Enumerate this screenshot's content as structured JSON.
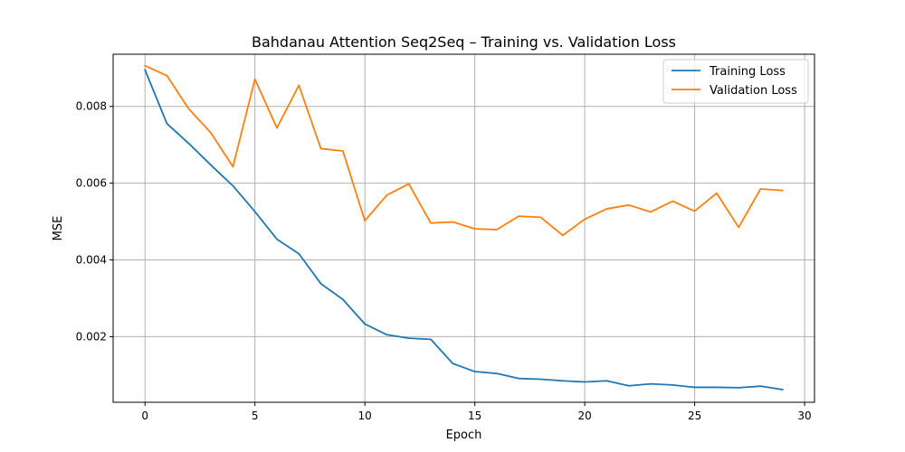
{
  "chart_data": {
    "type": "line",
    "title": "Bahdanau Attention Seq2Seq – Training vs. Validation Loss",
    "xlabel": "Epoch",
    "ylabel": "MSE",
    "xlim": [
      -1.45,
      30.45
    ],
    "ylim": [
      0.00029,
      0.00936
    ],
    "xticks": [
      0,
      5,
      10,
      15,
      20,
      25,
      30
    ],
    "xtick_labels": [
      "0",
      "5",
      "10",
      "15",
      "20",
      "25",
      "30"
    ],
    "yticks": [
      0.002,
      0.004,
      0.006,
      0.008
    ],
    "ytick_labels": [
      "0.002",
      "0.004",
      "0.006",
      "0.008"
    ],
    "grid": true,
    "legend_position": "top-right",
    "x": [
      0,
      1,
      2,
      3,
      4,
      5,
      6,
      7,
      8,
      9,
      10,
      11,
      12,
      13,
      14,
      15,
      16,
      17,
      18,
      19,
      20,
      21,
      22,
      23,
      24,
      25,
      26,
      27,
      28,
      29
    ],
    "series": [
      {
        "name": "Training Loss",
        "color": "#1f77b4",
        "values": [
          0.00895,
          0.00755,
          0.00703,
          0.00647,
          0.00593,
          0.00526,
          0.00454,
          0.00416,
          0.00338,
          0.00297,
          0.00233,
          0.00205,
          0.00196,
          0.00193,
          0.0013,
          0.00109,
          0.00104,
          0.00091,
          0.00089,
          0.00085,
          0.00082,
          0.00085,
          0.00072,
          0.00077,
          0.00074,
          0.00068,
          0.00068,
          0.00067,
          0.00071,
          0.00062
        ]
      },
      {
        "name": "Validation Loss",
        "color": "#ff7f0e",
        "values": [
          0.00906,
          0.0088,
          0.00793,
          0.00731,
          0.00643,
          0.00871,
          0.00744,
          0.00855,
          0.0069,
          0.00684,
          0.00502,
          0.00569,
          0.00598,
          0.00496,
          0.00499,
          0.00481,
          0.00479,
          0.00514,
          0.00511,
          0.00464,
          0.00506,
          0.00533,
          0.00543,
          0.00525,
          0.00553,
          0.00527,
          0.00574,
          0.00485,
          0.00585,
          0.00581
        ]
      }
    ]
  }
}
